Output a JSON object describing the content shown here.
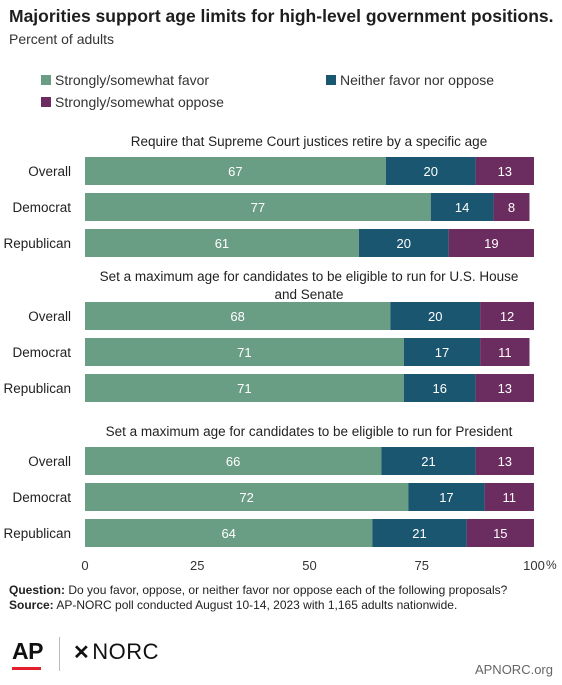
{
  "header": {
    "title": "Majorities support age limits for high-level government positions.",
    "subtitle": "Percent of adults"
  },
  "legend": [
    {
      "label": "Strongly/somewhat favor",
      "color": "#6a9e84"
    },
    {
      "label": "Neither favor nor oppose",
      "color": "#1a566f"
    },
    {
      "label": "Strongly/somewhat oppose",
      "color": "#6b2c5f"
    }
  ],
  "chart_data": {
    "type": "bar",
    "orientation": "horizontal",
    "stacked": true,
    "xlim": [
      0,
      100
    ],
    "x_ticks": [
      "0",
      "25",
      "50",
      "75",
      "100"
    ],
    "x_unit": "%",
    "groups": [
      {
        "title": "Require that Supreme Court justices retire by a specific age",
        "categories": [
          "Overall",
          "Democrat",
          "Republican"
        ],
        "series": [
          {
            "name": "Strongly/somewhat favor",
            "values": [
              67,
              77,
              61
            ]
          },
          {
            "name": "Neither favor nor oppose",
            "values": [
              20,
              14,
              20
            ]
          },
          {
            "name": "Strongly/somewhat oppose",
            "values": [
              13,
              8,
              19
            ]
          }
        ]
      },
      {
        "title": "Set a maximum age for candidates to be eligible to run for U.S. House and Senate",
        "title_lines": [
          "Set a maximum age for candidates to be eligible to run for U.S. House",
          "and Senate"
        ],
        "categories": [
          "Overall",
          "Democrat",
          "Republican"
        ],
        "series": [
          {
            "name": "Strongly/somewhat favor",
            "values": [
              68,
              71,
              71
            ]
          },
          {
            "name": "Neither favor nor oppose",
            "values": [
              20,
              17,
              16
            ]
          },
          {
            "name": "Strongly/somewhat oppose",
            "values": [
              12,
              11,
              13
            ]
          }
        ]
      },
      {
        "title": "Set a maximum age for candidates to be eligible to run for President",
        "categories": [
          "Overall",
          "Democrat",
          "Republican"
        ],
        "series": [
          {
            "name": "Strongly/somewhat favor",
            "values": [
              66,
              72,
              64
            ]
          },
          {
            "name": "Neither favor nor oppose",
            "values": [
              21,
              17,
              21
            ]
          },
          {
            "name": "Strongly/somewhat oppose",
            "values": [
              13,
              11,
              15
            ]
          }
        ]
      }
    ]
  },
  "notes": {
    "question_label": "Question:",
    "question_text": "Do you favor, oppose, or neither favor nor oppose each of the following proposals?",
    "source_label": "Source:",
    "source_text": "AP-NORC poll conducted August 10-14, 2023 with 1,165 adults nationwide."
  },
  "footer": {
    "ap_logo": "AP",
    "norc_mark": "✕",
    "norc_logo": "NORC",
    "site": "APNORC.org"
  }
}
